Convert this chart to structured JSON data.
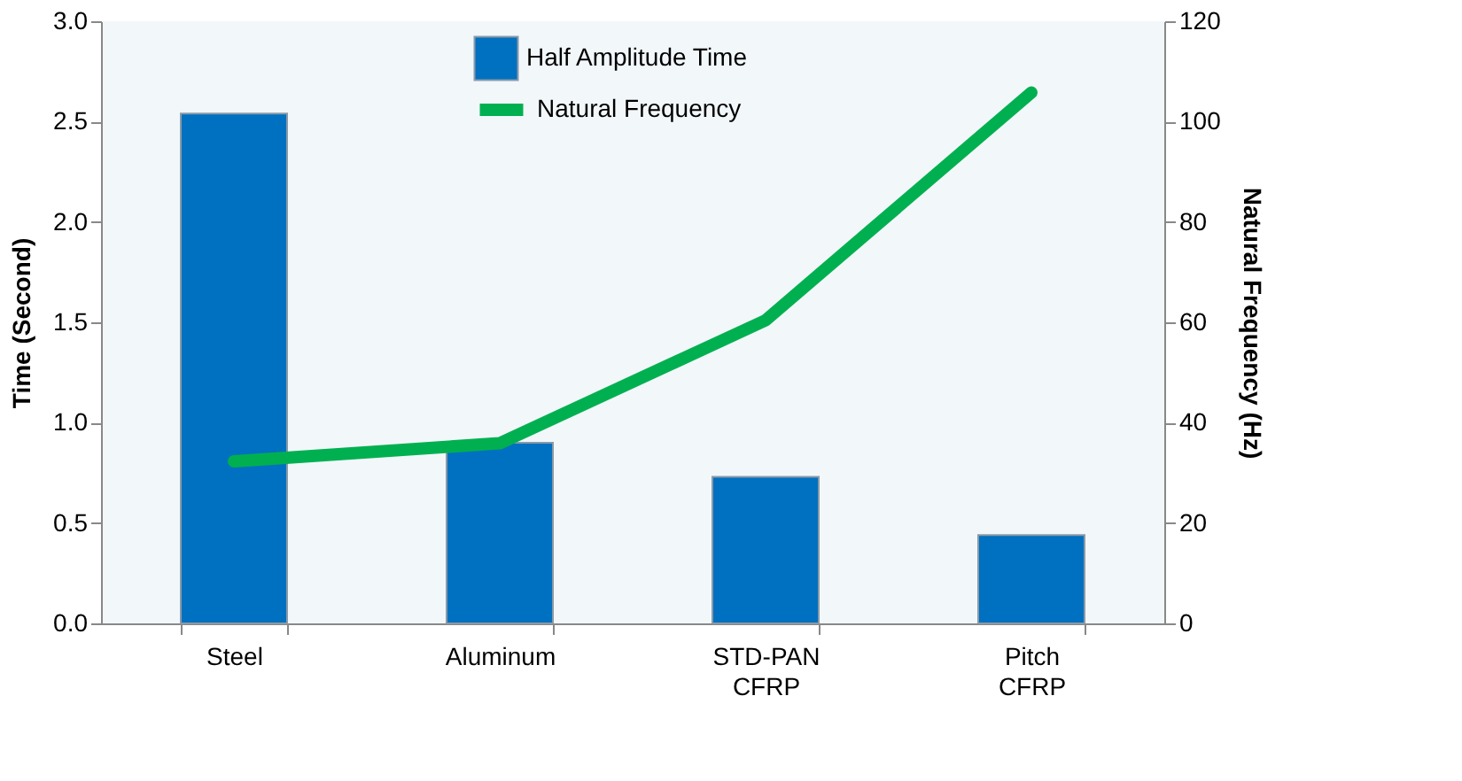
{
  "chart_data": {
    "type": "bar",
    "categories": [
      "Steel",
      "Aluminum",
      "STD-PAN CFRP",
      "Pitch CFRP"
    ],
    "series": [
      {
        "name": "Half Amplitude Time",
        "color": "#0070c0",
        "values": [
          2.54,
          0.9,
          0.73,
          0.44
        ]
      },
      {
        "name": "Natural Frequency",
        "type": "line",
        "axis": "y2",
        "color": "#00b050",
        "values": [
          32.3,
          35.9,
          60.4,
          105.8
        ]
      }
    ],
    "ylabel": "Time (Second)",
    "y2label": "Natural Frequency (Hz)",
    "ylim": [
      0,
      3
    ],
    "yticks": [
      {
        "value": 0,
        "label": "0.0"
      },
      0.5,
      {
        "value": 1,
        "label": "1.0"
      },
      1.5,
      {
        "value": 2,
        "label": "2.0"
      },
      2.5,
      {
        "value": 3,
        "label": "3.0"
      }
    ],
    "y2lim": [
      0,
      120
    ],
    "y2ticks": [
      0,
      20,
      40,
      60,
      80,
      100,
      120
    ],
    "grid": false,
    "legend": "top",
    "marker": "none",
    "line_style": "solid"
  }
}
